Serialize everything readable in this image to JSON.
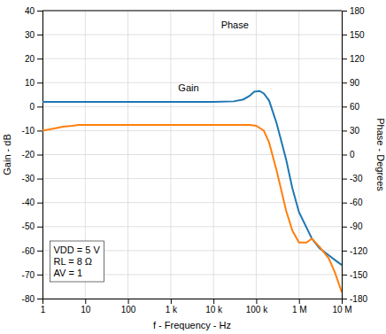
{
  "chart_data": {
    "type": "line",
    "log": "x",
    "grid": true,
    "x_label": "f - Frequency - Hz",
    "y_label": "Gain - dB",
    "y2_label": "Phase - Degrees",
    "xlim": [
      1,
      10000000
    ],
    "xticks": [
      1,
      10,
      100,
      {
        "value": 1000,
        "label": "1 k"
      },
      {
        "value": 10000,
        "label": "10 k"
      },
      {
        "value": 100000,
        "label": "100 k"
      },
      {
        "value": 1000000,
        "label": "1 M"
      },
      {
        "value": 10000000,
        "label": "10 M"
      }
    ],
    "ylim": [
      -80,
      40
    ],
    "yticks": [
      -80,
      -70,
      -60,
      -50,
      -40,
      -30,
      -20,
      -10,
      0,
      10,
      20,
      30,
      40
    ],
    "y2lim": [
      -180,
      180
    ],
    "y2ticks": [
      -180,
      -150,
      -120,
      -90,
      -60,
      -30,
      0,
      30,
      60,
      90,
      120,
      150,
      180
    ],
    "series": [
      {
        "x": [
          1,
          3,
          5,
          10,
          30,
          100,
          300,
          1000,
          3000,
          10000,
          30000,
          50000,
          70000,
          90000,
          120000,
          150000,
          200000,
          300000,
          500000,
          700000,
          1000000,
          2000000,
          3000000,
          5000000,
          7000000,
          10000000
        ],
        "values": [
          2.0,
          2.0,
          2.0,
          2.0,
          2.0,
          2.0,
          2.0,
          2.0,
          2.0,
          2.0,
          2.2,
          3.0,
          4.5,
          6.2,
          6.5,
          5.5,
          2.5,
          -7.0,
          -22.0,
          -34.0,
          -44.0,
          -55.0,
          -59.0,
          -62.0,
          -64.0,
          -66.0
        ]
      },
      {
        "axis": "y2",
        "x": [
          1,
          2,
          3,
          5,
          7,
          10,
          20,
          50,
          100,
          300,
          500,
          1000,
          3000,
          5000,
          10000,
          20000,
          30000,
          50000,
          70000,
          100000,
          150000,
          200000,
          300000,
          500000,
          700000,
          1000000,
          1500000,
          2000000,
          3000000,
          5000000,
          7000000,
          10000000
        ],
        "values": [
          30,
          33,
          35,
          36,
          37,
          37,
          37,
          37,
          37,
          37,
          37,
          37,
          37,
          37,
          37,
          37,
          37,
          37,
          37,
          36,
          30,
          15,
          -20,
          -70,
          -95,
          -110,
          -110,
          -105,
          -115,
          -130,
          -148,
          -172
        ]
      }
    ],
    "annotations": [
      {
        "text": "Gain",
        "x": 1500,
        "y": 5.5
      },
      {
        "text": "Phase",
        "x": 15000,
        "y": 32
      },
      {
        "text": "VDD = 5 V\nRL = 8 Ω\nAV = 1",
        "x": 1.5,
        "y": -56
      }
    ]
  }
}
